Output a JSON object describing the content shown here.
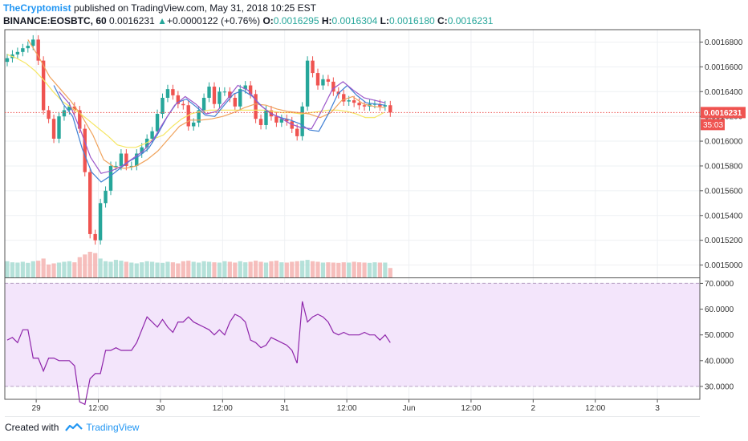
{
  "header": {
    "author": "TheCryptomist",
    "published": " published on TradingView.com, May 31, 2018 10:25 EST",
    "symbol": "BINANCE:EOSBTC, 60",
    "last": "0.0016231",
    "change_arrow": "▲",
    "change": "+0.0000122 (+0.76%)",
    "o_label": "O:",
    "o_value": "0.0016295",
    "h_label": "H:",
    "h_value": "0.0016304",
    "l_label": "L:",
    "l_value": "0.0016180",
    "c_label": "C:",
    "c_value": "0.0016231"
  },
  "colors": {
    "up": "#26a69a",
    "down": "#ef5350",
    "rsi": "#8e24aa",
    "rsi_band": "#f3e5fb",
    "ma_yellow": "#f5e663",
    "ma_orange": "#f0a35c",
    "ma_blue": "#3f7fd4",
    "ma_purple": "#9c57c9"
  },
  "footer": {
    "created_with": "Created with",
    "brand": "TradingView",
    "icon": "tradingview-logo-icon"
  },
  "chart_data": [
    {
      "type": "candlestick",
      "title": "",
      "ylim": [
        0.00149,
        0.00169
      ],
      "y_ticks": [
        "0.0016800",
        "0.0016600",
        "0.0016400",
        "0.0016200",
        "0.0016000",
        "0.0015800",
        "0.0015600",
        "0.0015400",
        "0.0015200",
        "0.0015000"
      ],
      "x_ticks": [
        {
          "t": 5.6,
          "label": "29"
        },
        {
          "t": 17.6,
          "label": "12:00"
        },
        {
          "t": 29.6,
          "label": "30"
        },
        {
          "t": 41.6,
          "label": "12:00"
        },
        {
          "t": 53.6,
          "label": "31"
        },
        {
          "t": 65.6,
          "label": "12:00"
        },
        {
          "t": 77.6,
          "label": "Jun"
        },
        {
          "t": 89.6,
          "label": "12:00"
        },
        {
          "t": 101.6,
          "label": "2"
        },
        {
          "t": 113.6,
          "label": "12:00"
        },
        {
          "t": 125.6,
          "label": "3"
        }
      ],
      "last_price_label": "0.0016231",
      "countdown_label": "35:03",
      "last_price": 0.0016231,
      "closes": [
        0.001667,
        0.00167,
        0.001672,
        0.001675,
        0.001677,
        0.001682,
        0.001665,
        0.001625,
        0.001618,
        0.001602,
        0.00162,
        0.001625,
        0.001628,
        0.001625,
        0.00161,
        0.001575,
        0.001525,
        0.00152,
        0.00155,
        0.00156,
        0.00158,
        0.00158,
        0.00159,
        0.00158,
        0.00158,
        0.00159,
        0.001595,
        0.001602,
        0.001608,
        0.001622,
        0.001635,
        0.001642,
        0.001637,
        0.00163,
        0.001629,
        0.001612,
        0.001615,
        0.001625,
        0.001635,
        0.001644,
        0.00163,
        0.00164,
        0.00164,
        0.001635,
        0.001628,
        0.001642,
        0.001645,
        0.001638,
        0.001618,
        0.001613,
        0.001625,
        0.00162,
        0.001615,
        0.001618,
        0.001616,
        0.00161,
        0.001604,
        0.001628,
        0.001665,
        0.001655,
        0.001645,
        0.00165,
        0.001648,
        0.00164,
        0.001638,
        0.001632,
        0.001633,
        0.001631,
        0.001629,
        0.001628,
        0.00163,
        0.00163,
        0.001628,
        0.001629,
        0.0016231
      ],
      "volumes": [
        60,
        56,
        55,
        58,
        54,
        60,
        62,
        70,
        48,
        52,
        55,
        58,
        60,
        56,
        75,
        85,
        95,
        90,
        70,
        60,
        58,
        65,
        62,
        58,
        55,
        52,
        56,
        60,
        58,
        55,
        54,
        58,
        56,
        52,
        60,
        62,
        58,
        55,
        60,
        58,
        56,
        55,
        60,
        58,
        55,
        60,
        56,
        58,
        62,
        58,
        55,
        60,
        62,
        56,
        55,
        58,
        60,
        62,
        65,
        60,
        58,
        55,
        56,
        55,
        54,
        56,
        55,
        58,
        56,
        55,
        54,
        56,
        55,
        55,
        35
      ],
      "ma_yellow": [
        0.00167,
        0.001667,
        0.001663,
        0.001657,
        0.001649,
        0.00164,
        0.001632,
        0.001627,
        0.001622,
        0.001616,
        0.00161,
        0.001604,
        0.001597,
        0.001595,
        0.001595,
        0.001598,
        0.001602,
        0.001605,
        0.001612,
        0.001618,
        0.001622,
        0.001624,
        0.001625,
        0.001625,
        0.001625,
        0.001625,
        0.001625,
        0.001625,
        0.001625,
        0.001624,
        0.001623,
        0.001623,
        0.001622,
        0.001623,
        0.001624,
        0.001625,
        0.001625,
        0.001624,
        0.001622,
        0.001619,
        0.001619,
        0.001623
      ],
      "ma_orange": [
        0.001682,
        0.001668,
        0.001652,
        0.001642,
        0.001632,
        0.00162,
        0.001605,
        0.001585,
        0.001579,
        0.001578,
        0.00158,
        0.001585,
        0.001592,
        0.001602,
        0.001612,
        0.001617,
        0.001617,
        0.001618,
        0.00162,
        0.001623,
        0.001627,
        0.00163,
        0.001629,
        0.001626,
        0.001624,
        0.001623,
        0.001622,
        0.001619,
        0.001623,
        0.001633,
        0.001636,
        0.00163,
        0.001628,
        0.001627
      ],
      "ma_blue": [
        0.001645,
        0.00163,
        0.00162,
        0.001594,
        0.001575,
        0.001567,
        0.001572,
        0.001578,
        0.001584,
        0.001588,
        0.001594,
        0.001606,
        0.00162,
        0.001631,
        0.001634,
        0.001628,
        0.001621,
        0.00162,
        0.001629,
        0.001638,
        0.001641,
        0.001636,
        0.001628,
        0.001622,
        0.001619,
        0.001617,
        0.001614,
        0.001609,
        0.001608,
        0.001622,
        0.001638,
        0.001645,
        0.001637,
        0.001631,
        0.00163,
        0.001629
      ],
      "ma_purple": [
        0.00164,
        0.00163,
        0.00161,
        0.001587,
        0.001574,
        0.001576,
        0.00158,
        0.001586,
        0.001592,
        0.001602,
        0.001616,
        0.001629,
        0.001636,
        0.00163,
        0.001622,
        0.001624,
        0.001634,
        0.001645,
        0.001641,
        0.00163,
        0.001623,
        0.001619,
        0.001614,
        0.001611,
        0.00161,
        0.001625,
        0.001642,
        0.001648,
        0.001641,
        0.001635,
        0.001633,
        0.001631
      ]
    },
    {
      "type": "line",
      "title": "",
      "series": [
        {
          "values": [
            48,
            49,
            47,
            52,
            52,
            41,
            41,
            36,
            41,
            41,
            40,
            40,
            40,
            38,
            24,
            23,
            33,
            35,
            35,
            44,
            44,
            45,
            44,
            44,
            44,
            47,
            52,
            57,
            55,
            53,
            56,
            53,
            51,
            55,
            55,
            57,
            55,
            54,
            53,
            52,
            50,
            52,
            50,
            55,
            58,
            57,
            55,
            48,
            47,
            45,
            46,
            49,
            48,
            47,
            46,
            44,
            39,
            63,
            55,
            57,
            58,
            57,
            55,
            51,
            50,
            51,
            50,
            50,
            50,
            51,
            50,
            50,
            48,
            50,
            47
          ]
        }
      ],
      "ylim": [
        25,
        72
      ],
      "y_ticks": [
        "70.0000",
        "60.0000",
        "50.0000",
        "40.0000",
        "30.0000"
      ],
      "band": [
        30,
        70
      ]
    }
  ]
}
